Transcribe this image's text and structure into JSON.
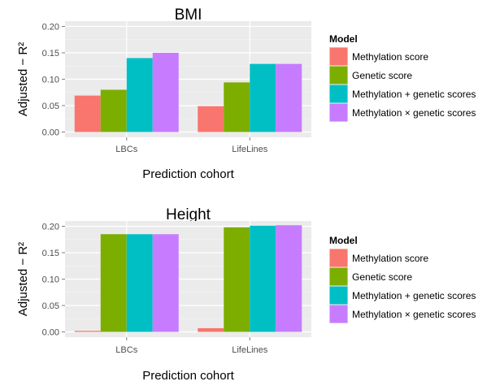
{
  "colors": {
    "panel_bg": "#ebebeb",
    "grid_major": "#ffffff",
    "series": [
      "#f8766d",
      "#7cae00",
      "#00bfc4",
      "#c77cff"
    ]
  },
  "chart_data": [
    {
      "type": "bar",
      "title": "BMI",
      "xlabel": "Prediction cohort",
      "ylabel": "Adjusted − R²",
      "categories": [
        "LBCs",
        "LifeLines"
      ],
      "yticks": [
        "0.00",
        "0.05",
        "0.10",
        "0.15",
        "0.20"
      ],
      "ylim": [
        -0.01,
        0.21
      ],
      "grid": true,
      "legend_position": "right",
      "legend_title": "Model",
      "series": [
        {
          "name": "Methylation score",
          "values": [
            0.069,
            0.049
          ]
        },
        {
          "name": "Genetic score",
          "values": [
            0.08,
            0.094
          ]
        },
        {
          "name": "Methylation + genetic scores",
          "values": [
            0.14,
            0.129
          ]
        },
        {
          "name": "Methylation × genetic scores",
          "values": [
            0.15,
            0.129
          ]
        }
      ]
    },
    {
      "type": "bar",
      "title": "Height",
      "xlabel": "Prediction cohort",
      "ylabel": "Adjusted − R²",
      "categories": [
        "LBCs",
        "LifeLines"
      ],
      "yticks": [
        "0.00",
        "0.05",
        "0.10",
        "0.15",
        "0.20"
      ],
      "ylim": [
        -0.01,
        0.21
      ],
      "grid": true,
      "legend_position": "right",
      "legend_title": "Model",
      "series": [
        {
          "name": "Methylation score",
          "values": [
            0.002,
            0.007
          ]
        },
        {
          "name": "Genetic score",
          "values": [
            0.185,
            0.198
          ]
        },
        {
          "name": "Methylation + genetic scores",
          "values": [
            0.185,
            0.201
          ]
        },
        {
          "name": "Methylation × genetic scores",
          "values": [
            0.185,
            0.202
          ]
        }
      ]
    }
  ]
}
